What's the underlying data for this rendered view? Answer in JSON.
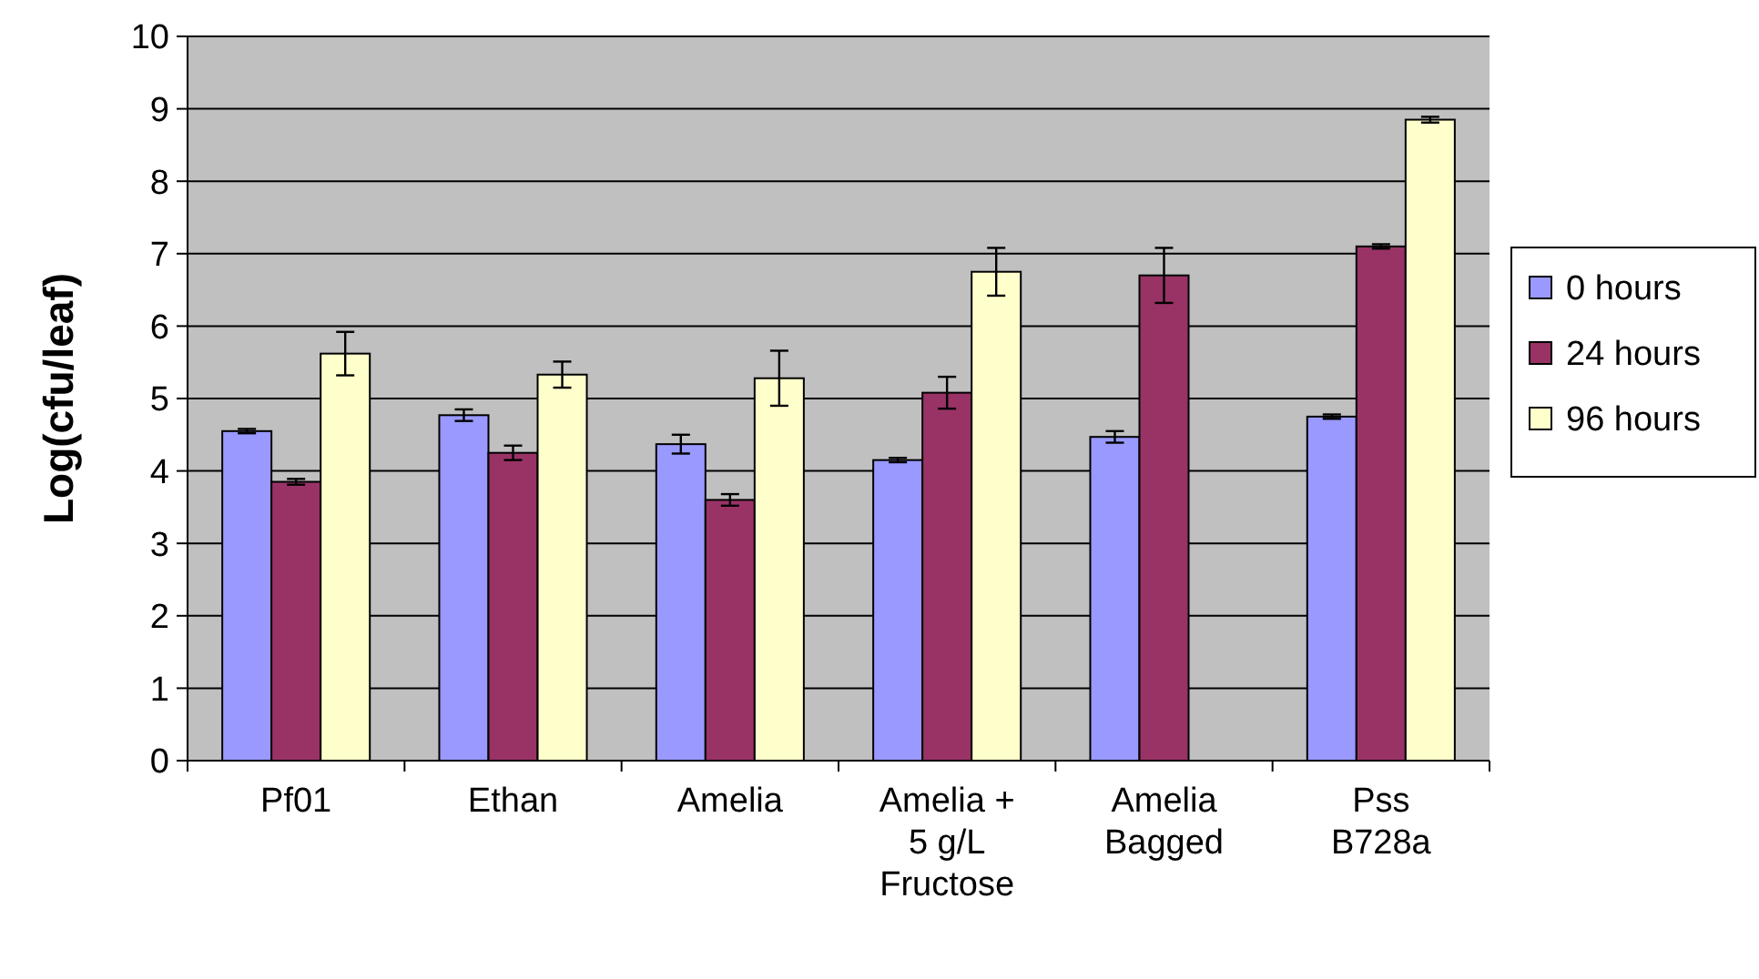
{
  "chart_data": {
    "type": "bar",
    "ylabel": "Log(cfu/leaf)",
    "categories": [
      "Pf01",
      "Ethan",
      "Amelia",
      "Amelia +\n5 g/L\nFructose",
      "Amelia\nBagged",
      "Pss\nB728a"
    ],
    "series": [
      {
        "name": "0 hours",
        "color": "#9999ff",
        "values": [
          4.55,
          4.77,
          4.37,
          4.15,
          4.47,
          4.75
        ],
        "errors": [
          0.03,
          0.08,
          0.13,
          0.03,
          0.08,
          0.03
        ]
      },
      {
        "name": "24 hours",
        "color": "#993366",
        "values": [
          3.85,
          4.25,
          3.6,
          5.08,
          6.7,
          7.1
        ],
        "errors": [
          0.04,
          0.1,
          0.08,
          0.22,
          0.38,
          0.03
        ]
      },
      {
        "name": "96 hours",
        "color": "#ffffcc",
        "values": [
          5.62,
          5.33,
          5.28,
          6.75,
          0,
          8.85
        ],
        "errors": [
          0.3,
          0.18,
          0.38,
          0.33,
          null,
          0.04
        ]
      }
    ],
    "ylim": [
      0,
      10
    ],
    "yticks": [
      0,
      1,
      2,
      3,
      4,
      5,
      6,
      7,
      8,
      9,
      10
    ],
    "grid": "y",
    "legend": "right"
  }
}
